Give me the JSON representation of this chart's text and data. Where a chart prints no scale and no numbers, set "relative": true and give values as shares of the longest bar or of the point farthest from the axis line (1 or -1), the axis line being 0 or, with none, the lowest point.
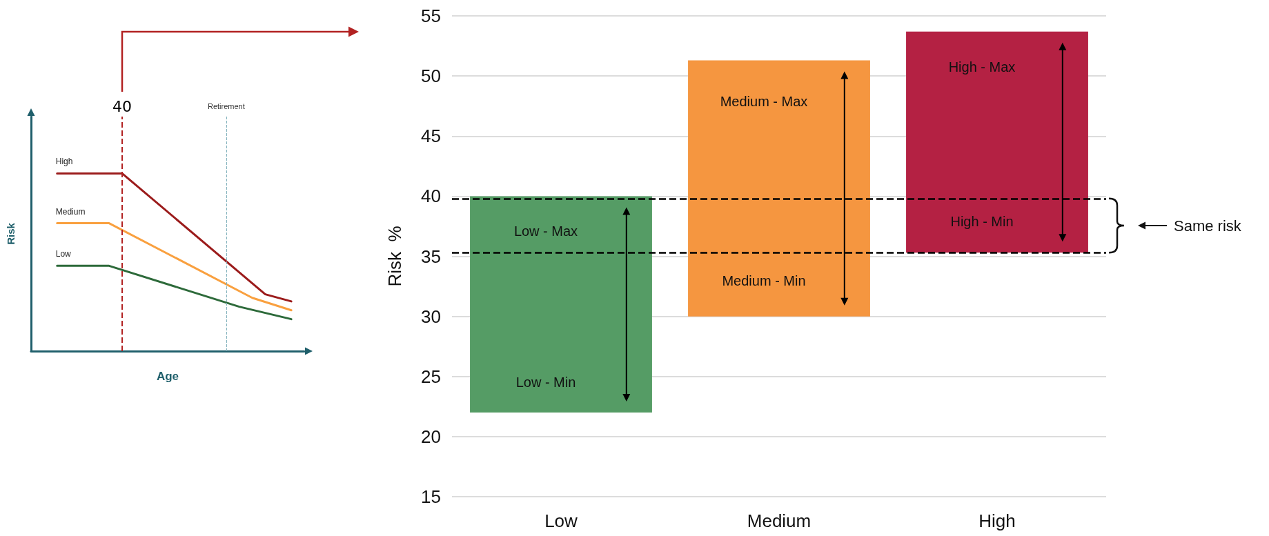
{
  "chart_data": [
    {
      "type": "line",
      "xlabel": "Age",
      "ylabel": "Risk",
      "relative": true,
      "marker": "none",
      "annotations": [
        "40",
        "Retirement"
      ],
      "categories": [
        null,
        null,
        null,
        null,
        null,
        null,
        null,
        null,
        null,
        null,
        null,
        null,
        null,
        null,
        null,
        null,
        null,
        null,
        null,
        null,
        null,
        null
      ],
      "series": [
        {
          "name": "High",
          "color": "#9b1b1b",
          "values": [
            null,
            null,
            1,
            null,
            null,
            null,
            null,
            1,
            null,
            null,
            null,
            null,
            null,
            null,
            null,
            null,
            null,
            null,
            0.32,
            null,
            0.28,
            null
          ]
        },
        {
          "name": "Medium",
          "color": "#f9a03f",
          "values": [
            null,
            null,
            0.72,
            null,
            null,
            null,
            0.72,
            null,
            null,
            null,
            null,
            null,
            null,
            null,
            null,
            null,
            null,
            0.3,
            null,
            null,
            0.23,
            null
          ]
        },
        {
          "name": "Low",
          "color": "#2d6a3a",
          "values": [
            null,
            null,
            0.48,
            null,
            null,
            null,
            0.48,
            null,
            null,
            null,
            null,
            null,
            null,
            null,
            null,
            null,
            0.25,
            null,
            null,
            null,
            0.18,
            null
          ]
        }
      ]
    },
    {
      "type": "bar",
      "ylabel": "Risk  %",
      "categories": [
        "Low",
        "Medium",
        "High"
      ],
      "base": [
        22,
        30,
        35.3
      ],
      "values": [
        18,
        21.3,
        18.4
      ],
      "colors": [
        "#559c65",
        "#f59640",
        "#b42143"
      ],
      "ylim": [
        15,
        55
      ],
      "yticks": [
        15,
        20,
        25,
        30,
        35,
        40,
        45,
        50,
        55
      ],
      "grid": "y",
      "ref_lines": [
        {
          "axis": "y",
          "value": 39.8,
          "color": "#000000",
          "line_style": "dashed"
        },
        {
          "axis": "y",
          "value": 35.3,
          "color": "#000000",
          "line_style": "dashed"
        }
      ],
      "annotations": [
        "Low - Max",
        "Low - Min",
        "Medium - Max",
        "Medium - Min",
        "High - Max",
        "High - Min",
        "Same risk"
      ]
    }
  ]
}
